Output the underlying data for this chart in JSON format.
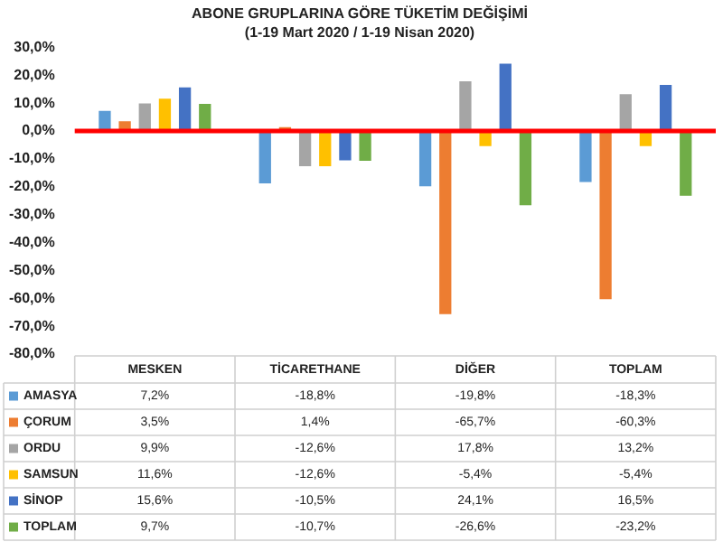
{
  "chart_data": {
    "type": "bar",
    "title": "ABONE GRUPLARINA GÖRE TÜKETİM DEĞİŞİMİ",
    "subtitle": "(1-19 Mart 2020 / 1-19 Nisan 2020)",
    "categories": [
      "MESKEN",
      "TİCARETHANE",
      "DİĞER",
      "TOPLAM"
    ],
    "series": [
      {
        "name": "AMASYA",
        "color": "#5b9bd5",
        "values": [
          7.2,
          -18.8,
          -19.8,
          -18.3
        ],
        "value_labels": [
          "7,2%",
          "-18,8%",
          "-19,8%",
          "-18,3%"
        ]
      },
      {
        "name": "ÇORUM",
        "color": "#ed7d31",
        "values": [
          3.5,
          1.4,
          -65.7,
          -60.3
        ],
        "value_labels": [
          "3,5%",
          "1,4%",
          "-65,7%",
          "-60,3%"
        ]
      },
      {
        "name": "ORDU",
        "color": "#a5a5a5",
        "values": [
          9.9,
          -12.6,
          17.8,
          13.2
        ],
        "value_labels": [
          "9,9%",
          "-12,6%",
          "17,8%",
          "13,2%"
        ]
      },
      {
        "name": "SAMSUN",
        "color": "#ffc000",
        "values": [
          11.6,
          -12.6,
          -5.4,
          -5.4
        ],
        "value_labels": [
          "11,6%",
          "-12,6%",
          "-5,4%",
          "-5,4%"
        ]
      },
      {
        "name": "SİNOP",
        "color": "#4472c4",
        "values": [
          15.6,
          -10.5,
          24.1,
          16.5
        ],
        "value_labels": [
          "15,6%",
          "-10,5%",
          "24,1%",
          "16,5%"
        ]
      },
      {
        "name": "TOPLAM",
        "color": "#70ad47",
        "values": [
          9.7,
          -10.7,
          -26.6,
          -23.2
        ],
        "value_labels": [
          "9,7%",
          "-10,7%",
          "-26,6%",
          "-23,2%"
        ]
      }
    ],
    "ylim": [
      -80,
      30
    ],
    "yticks": [
      {
        "value": -80,
        "label": "-80,0%"
      },
      {
        "value": -70,
        "label": "-70,0%"
      },
      {
        "value": -60,
        "label": "-60,0%"
      },
      {
        "value": -50,
        "label": "-50,0%"
      },
      {
        "value": -40,
        "label": "-40,0%"
      },
      {
        "value": -30,
        "label": "-30,0%"
      },
      {
        "value": -20,
        "label": "-20,0%"
      },
      {
        "value": -10,
        "label": "-10,0%"
      },
      {
        "value": 0,
        "label": "0,0%"
      },
      {
        "value": 10,
        "label": "10,0%"
      },
      {
        "value": 20,
        "label": "20,0%"
      },
      {
        "value": 30,
        "label": "30,0%"
      }
    ],
    "ref_lines": [
      {
        "axis": "y",
        "value": 0,
        "color": "#ff0000"
      }
    ],
    "legend": "bottom"
  }
}
